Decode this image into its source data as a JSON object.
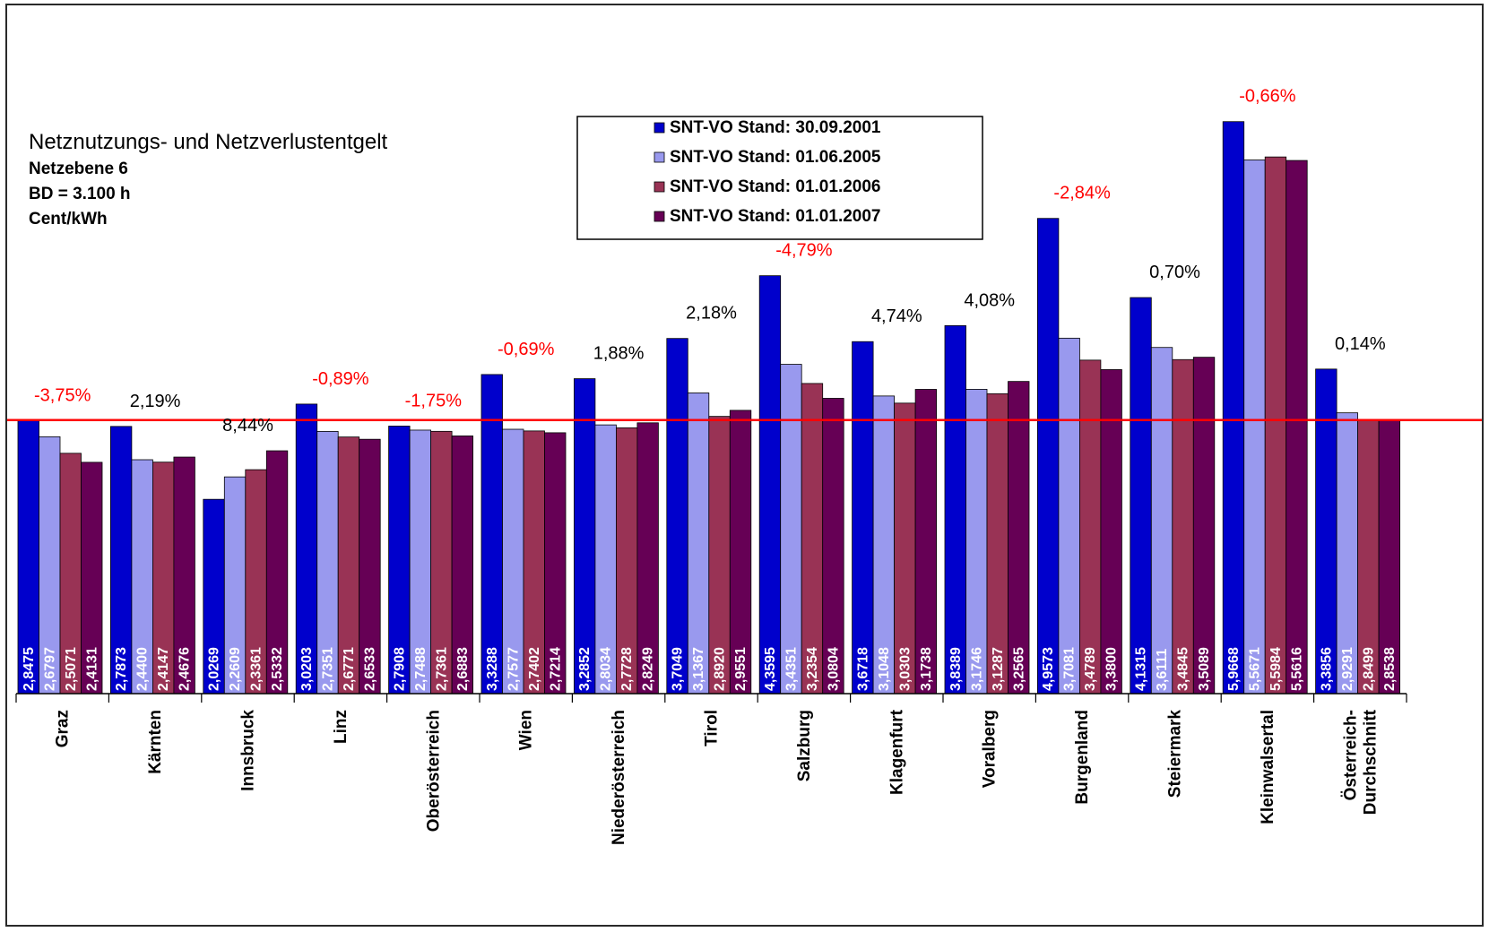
{
  "chart_data": {
    "type": "bar",
    "title": "Netznutzungs- und Netzverlustentgelt",
    "subtitle_lines": [
      "Netzebene 6",
      "BD = 3.100 h",
      "Cent/kWh"
    ],
    "categories": [
      "Graz",
      "Kärnten",
      "Innsbruck",
      "Linz",
      "Oberösterreich",
      "Wien",
      "Niederösterreich",
      "Tirol",
      "Salzburg",
      "Klagenfurt",
      "Voralberg",
      "Burgenland",
      "Steiermark",
      "Kleinwalsertal",
      "Österreich-Durchschnitt"
    ],
    "category_label_lines": [
      [
        "Graz"
      ],
      [
        "Kärnten"
      ],
      [
        "Innsbruck"
      ],
      [
        "Linz"
      ],
      [
        "Oberösterreich"
      ],
      [
        "Wien"
      ],
      [
        "Niederösterreich"
      ],
      [
        "Tirol"
      ],
      [
        "Salzburg"
      ],
      [
        "Klagenfurt"
      ],
      [
        "Voralberg"
      ],
      [
        "Burgenland"
      ],
      [
        "Steiermark"
      ],
      [
        "Kleinwalsertal"
      ],
      [
        "Österreich-",
        "Durchschnitt"
      ]
    ],
    "series": [
      {
        "name": "SNT-VO Stand: 30.09.2001",
        "color": "#0000cc",
        "values": [
          2.8475,
          2.7873,
          2.0269,
          3.0203,
          2.7908,
          3.3288,
          3.2852,
          3.7049,
          4.3595,
          3.6718,
          3.8389,
          4.9573,
          4.1315,
          5.9668,
          3.3856
        ],
        "labels": [
          "2,8475",
          "2,7873",
          "2,0269",
          "3,0203",
          "2,7908",
          "3,3288",
          "3,2852",
          "3,7049",
          "4,3595",
          "3,6718",
          "3,8389",
          "4,9573",
          "4,1315",
          "5,9668",
          "3,3856"
        ]
      },
      {
        "name": "SNT-VO Stand: 01.06.2005",
        "color": "#9999ee",
        "values": [
          2.6797,
          2.44,
          2.2609,
          2.7351,
          2.7488,
          2.7577,
          2.8034,
          3.1367,
          3.4351,
          3.1048,
          3.1746,
          3.7081,
          3.6111,
          5.5671,
          2.9291
        ],
        "labels": [
          "2,6797",
          "2,4400",
          "2,2609",
          "2,7351",
          "2,7488",
          "2,7577",
          "2,8034",
          "3,1367",
          "3,4351",
          "3,1048",
          "3,1746",
          "3,7081",
          "3,6111",
          "5,5671",
          "2,9291"
        ]
      },
      {
        "name": "SNT-VO Stand: 01.01.2006",
        "color": "#993355",
        "values": [
          2.5071,
          2.4147,
          2.3361,
          2.6771,
          2.7361,
          2.7402,
          2.7728,
          2.892,
          3.2354,
          3.0303,
          3.1287,
          3.4789,
          3.4845,
          5.5984,
          2.8499
        ],
        "labels": [
          "2,5071",
          "2,4147",
          "2,3361",
          "2,6771",
          "2,7361",
          "2,7402",
          "2,7728",
          "2,8920",
          "3,2354",
          "3,0303",
          "3,1287",
          "3,4789",
          "3,4845",
          "5,5984",
          "2,8499"
        ]
      },
      {
        "name": "SNT-VO Stand: 01.01.2007",
        "color": "#660055",
        "values": [
          2.4131,
          2.4676,
          2.5332,
          2.6533,
          2.6883,
          2.7214,
          2.8249,
          2.9551,
          3.0804,
          3.1738,
          3.2565,
          3.38,
          3.5089,
          5.5616,
          2.8538
        ],
        "labels": [
          "2,4131",
          "2,4676",
          "2,5332",
          "2,6533",
          "2,6883",
          "2,7214",
          "2,8249",
          "2,9551",
          "3,0804",
          "3,1738",
          "3,2565",
          "3,3800",
          "3,5089",
          "5,5616",
          "2,8538"
        ]
      }
    ],
    "change_labels": [
      "-3,75%",
      "2,19%",
      "8,44%",
      "-0,89%",
      "-1,75%",
      "-0,69%",
      "1,88%",
      "2,18%",
      "-4,79%",
      "4,74%",
      "4,08%",
      "-2,84%",
      "0,70%",
      "-0,66%",
      "0,14%"
    ],
    "change_colors": [
      "#ff0000",
      "#000000",
      "#000000",
      "#ff0000",
      "#ff0000",
      "#ff0000",
      "#000000",
      "#000000",
      "#ff0000",
      "#000000",
      "#000000",
      "#ff0000",
      "#000000",
      "#ff0000",
      "#000000"
    ],
    "reference_line": {
      "value": 2.8538,
      "color": "#ff0000"
    },
    "ylim": [
      0,
      6.6
    ],
    "legend_position": "top-center",
    "grid": false
  }
}
